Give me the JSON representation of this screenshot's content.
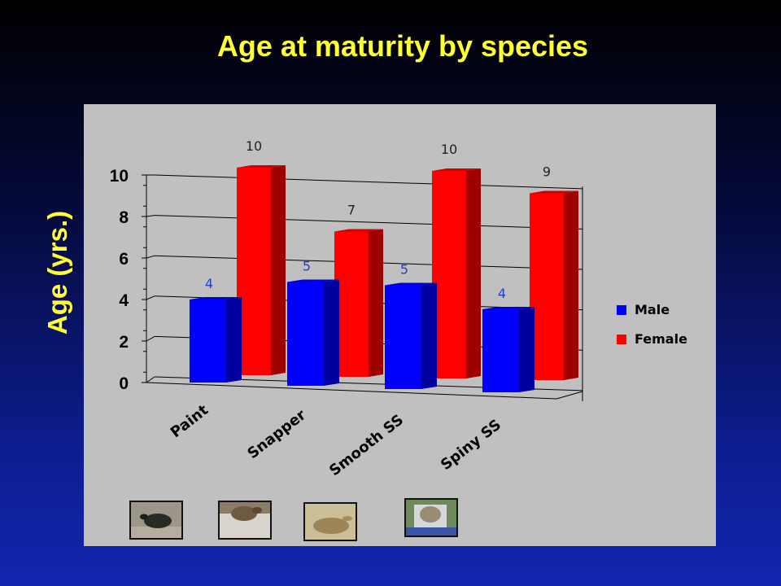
{
  "title": "Age at maturity by species",
  "y_axis_title": "Age (yrs.)",
  "chart_data": {
    "type": "bar",
    "categories": [
      "Paint",
      "Snapper",
      "Smooth SS",
      "Spiny SS"
    ],
    "series": [
      {
        "name": "Male",
        "values": [
          4,
          5,
          5,
          4
        ],
        "color": "#0000ff",
        "label_color": "#1f3fd0"
      },
      {
        "name": "Female",
        "values": [
          10,
          7,
          10,
          9
        ],
        "color": "#ff0000",
        "label_color": "#222222"
      }
    ],
    "ylim": [
      0,
      10
    ],
    "y_ticks": [
      "0",
      "2",
      "4",
      "6",
      "8",
      "10"
    ],
    "grid": true,
    "legend_position": "right",
    "style": "3d-clustered-column"
  },
  "thumbnails": [
    {
      "icon": "painted-turtle-photo"
    },
    {
      "icon": "snapping-turtle-photo"
    },
    {
      "icon": "smooth-softshell-photo"
    },
    {
      "icon": "spiny-softshell-photo"
    }
  ]
}
